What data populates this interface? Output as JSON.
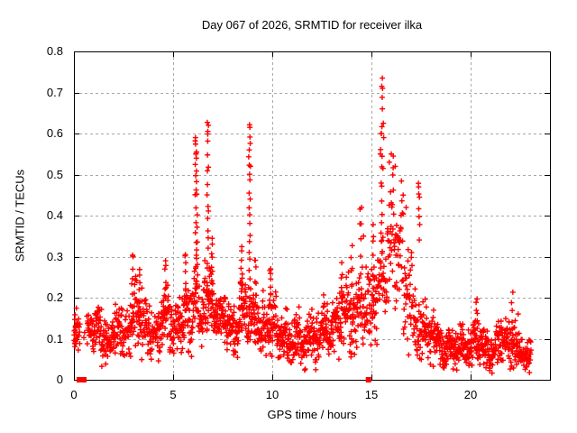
{
  "chart_data": {
    "type": "scatter",
    "title": "Day 067 of 2026, SRMTID for receiver ilka",
    "xlabel": "GPS time / hours",
    "ylabel": "SRMTID / TECUs",
    "xlim": [
      0,
      24
    ],
    "ylim": [
      0,
      0.8
    ],
    "xticks": [
      "0",
      "5",
      "10",
      "15",
      "20"
    ],
    "xtick_values": [
      0,
      5,
      10,
      15,
      20
    ],
    "yticks": [
      "0",
      "0.1",
      "0.2",
      "0.3",
      "0.4",
      "0.5",
      "0.6",
      "0.7",
      "0.8"
    ],
    "ytick_values": [
      0,
      0.1,
      0.2,
      0.3,
      0.4,
      0.5,
      0.6,
      0.7,
      0.8
    ],
    "grid": true,
    "legend": "none",
    "marker": "plus",
    "marker_color": "#ff0000",
    "grid_color": "#a8a8a8",
    "border_color": "#000000",
    "background": "#ffffff",
    "text_color": "#000000",
    "seed": 67,
    "band_segments": [
      [
        0.0,
        0.3,
        0.11,
        0.04,
        75
      ],
      [
        0.3,
        0.65,
        0.115,
        0.03,
        8
      ],
      [
        0.65,
        1.05,
        0.135,
        0.05,
        85
      ],
      [
        1.05,
        1.4,
        0.115,
        0.05,
        85
      ],
      [
        1.4,
        1.85,
        0.085,
        0.045,
        85
      ],
      [
        1.85,
        2.2,
        0.125,
        0.05,
        85
      ],
      [
        2.2,
        2.5,
        0.15,
        0.06,
        85
      ],
      [
        2.5,
        2.8,
        0.105,
        0.05,
        80
      ],
      [
        2.8,
        3.2,
        0.155,
        0.065,
        90
      ],
      [
        3.2,
        3.5,
        0.16,
        0.065,
        90
      ],
      [
        3.5,
        3.85,
        0.125,
        0.055,
        85
      ],
      [
        3.85,
        4.35,
        0.105,
        0.05,
        85
      ],
      [
        4.35,
        4.8,
        0.14,
        0.065,
        90
      ],
      [
        4.8,
        5.2,
        0.13,
        0.06,
        85
      ],
      [
        5.2,
        5.6,
        0.15,
        0.065,
        90
      ],
      [
        5.6,
        6.0,
        0.16,
        0.07,
        90
      ],
      [
        6.0,
        6.45,
        0.165,
        0.075,
        90
      ],
      [
        6.45,
        7.15,
        0.175,
        0.08,
        95
      ],
      [
        7.15,
        7.7,
        0.15,
        0.06,
        90
      ],
      [
        7.7,
        8.3,
        0.115,
        0.05,
        90
      ],
      [
        8.3,
        8.7,
        0.16,
        0.08,
        90
      ],
      [
        8.7,
        9.1,
        0.16,
        0.07,
        90
      ],
      [
        9.1,
        9.55,
        0.145,
        0.06,
        90
      ],
      [
        9.55,
        10.2,
        0.14,
        0.06,
        90
      ],
      [
        10.2,
        10.75,
        0.11,
        0.05,
        90
      ],
      [
        10.75,
        11.35,
        0.1,
        0.05,
        90
      ],
      [
        11.35,
        12.05,
        0.095,
        0.05,
        90
      ],
      [
        12.05,
        12.75,
        0.11,
        0.05,
        90
      ],
      [
        12.75,
        13.35,
        0.12,
        0.055,
        90
      ],
      [
        13.35,
        13.95,
        0.15,
        0.07,
        90
      ],
      [
        13.95,
        14.6,
        0.16,
        0.08,
        85
      ],
      [
        14.6,
        15.3,
        0.17,
        0.09,
        80
      ],
      [
        15.3,
        15.8,
        0.24,
        0.1,
        70
      ],
      [
        15.8,
        16.15,
        0.345,
        0.11,
        85
      ],
      [
        16.15,
        16.6,
        0.33,
        0.12,
        85
      ],
      [
        16.6,
        17.05,
        0.22,
        0.1,
        80
      ],
      [
        17.05,
        17.6,
        0.14,
        0.06,
        80
      ],
      [
        17.6,
        18.15,
        0.12,
        0.055,
        90
      ],
      [
        18.15,
        18.85,
        0.085,
        0.04,
        90
      ],
      [
        18.85,
        19.65,
        0.08,
        0.04,
        90
      ],
      [
        19.65,
        20.1,
        0.075,
        0.04,
        90
      ],
      [
        20.1,
        20.55,
        0.11,
        0.05,
        90
      ],
      [
        20.55,
        21.3,
        0.075,
        0.04,
        90
      ],
      [
        21.3,
        21.85,
        0.105,
        0.05,
        90
      ],
      [
        21.85,
        22.4,
        0.095,
        0.048,
        90
      ],
      [
        22.4,
        23.05,
        0.065,
        0.035,
        90
      ]
    ],
    "spike_columns": [
      [
        0.05,
        0.08,
        0.155,
        10
      ],
      [
        2.95,
        0.18,
        0.3,
        6
      ],
      [
        3.3,
        0.18,
        0.27,
        6
      ],
      [
        4.6,
        0.18,
        0.285,
        6
      ],
      [
        5.6,
        0.2,
        0.3,
        6
      ],
      [
        6.15,
        0.22,
        0.59,
        16
      ],
      [
        6.2,
        0.3,
        0.55,
        8
      ],
      [
        6.75,
        0.22,
        0.62,
        18
      ],
      [
        6.95,
        0.2,
        0.35,
        10
      ],
      [
        8.45,
        0.2,
        0.32,
        10
      ],
      [
        8.85,
        0.2,
        0.615,
        20
      ],
      [
        9.15,
        0.18,
        0.3,
        8
      ],
      [
        9.9,
        0.18,
        0.27,
        8
      ],
      [
        12.6,
        0.14,
        0.2,
        5
      ],
      [
        13.5,
        0.18,
        0.28,
        6
      ],
      [
        14.0,
        0.2,
        0.32,
        7
      ],
      [
        14.45,
        0.3,
        0.42,
        4
      ],
      [
        15.1,
        0.2,
        0.38,
        8
      ],
      [
        15.5,
        0.28,
        0.62,
        14
      ],
      [
        17.4,
        0.35,
        0.47,
        6
      ],
      [
        20.3,
        0.12,
        0.2,
        5
      ],
      [
        22.1,
        0.12,
        0.205,
        5
      ]
    ],
    "outlier_points": [
      [
        15.55,
        0.735
      ],
      [
        15.52,
        0.715
      ],
      [
        15.56,
        0.71
      ],
      [
        15.54,
        0.688
      ],
      [
        15.55,
        0.66
      ],
      [
        15.6,
        0.625
      ],
      [
        15.5,
        0.6
      ],
      [
        15.62,
        0.59
      ],
      [
        15.45,
        0.55
      ],
      [
        15.58,
        0.515
      ],
      [
        6.78,
        0.62
      ],
      [
        6.75,
        0.605
      ],
      [
        6.13,
        0.59
      ],
      [
        6.18,
        0.555
      ],
      [
        6.15,
        0.55
      ],
      [
        8.87,
        0.615
      ],
      [
        8.84,
        0.56
      ],
      [
        8.9,
        0.52
      ],
      [
        16.0,
        0.55
      ],
      [
        16.1,
        0.545
      ],
      [
        15.9,
        0.53
      ],
      [
        16.2,
        0.52
      ],
      [
        17.38,
        0.47
      ],
      [
        17.42,
        0.445
      ],
      [
        16.6,
        0.45
      ],
      [
        16.75,
        0.42
      ],
      [
        14.5,
        0.42
      ],
      [
        14.42,
        0.38
      ],
      [
        14.6,
        0.35
      ],
      [
        9.92,
        0.27
      ],
      [
        5.62,
        0.305
      ],
      [
        2.98,
        0.3
      ],
      [
        4.62,
        0.29
      ]
    ],
    "gap_markers": {
      "marker": "filled-square",
      "y": 0,
      "x": [
        0.27,
        0.5,
        14.85
      ]
    }
  }
}
